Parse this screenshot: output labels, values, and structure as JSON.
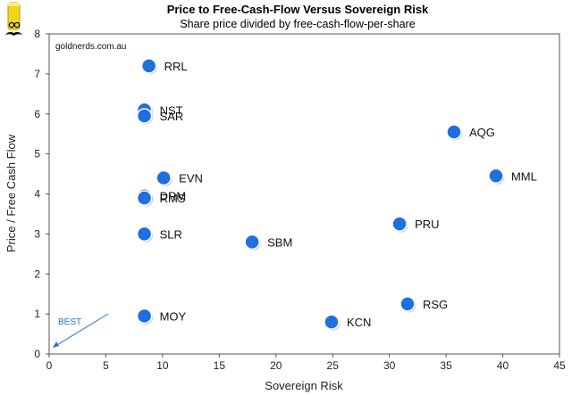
{
  "chart_data": {
    "type": "scatter",
    "title": "Price to Free-Cash-Flow Versus Sovereign Risk",
    "subtitle": "Share price divided by free-cash-flow-per-share",
    "xlabel": "Sovereign Risk",
    "ylabel": "Price / Free Cash Flow",
    "xlim": [
      0,
      45
    ],
    "ylim": [
      0,
      8
    ],
    "xticks": [
      0,
      5,
      10,
      15,
      20,
      25,
      30,
      35,
      40,
      45
    ],
    "yticks": [
      0,
      1,
      2,
      3,
      4,
      5,
      6,
      7,
      8
    ],
    "grid": false,
    "legend": "none",
    "marker_color": "#1f6fe0",
    "points": [
      {
        "label": "RRL",
        "x": 8.8,
        "y": 7.2
      },
      {
        "label": "NST",
        "x": 8.4,
        "y": 6.1
      },
      {
        "label": "SAR",
        "x": 8.4,
        "y": 5.95
      },
      {
        "label": "AQG",
        "x": 35.7,
        "y": 5.55
      },
      {
        "label": "MML",
        "x": 39.4,
        "y": 4.45
      },
      {
        "label": "EVN",
        "x": 10.1,
        "y": 4.4
      },
      {
        "label": "DRM",
        "x": 8.4,
        "y": 3.95
      },
      {
        "label": "RMS",
        "x": 8.4,
        "y": 3.9
      },
      {
        "label": "SLR",
        "x": 8.4,
        "y": 3.0
      },
      {
        "label": "SBM",
        "x": 17.9,
        "y": 2.8
      },
      {
        "label": "PRU",
        "x": 30.9,
        "y": 3.25
      },
      {
        "label": "RSG",
        "x": 31.6,
        "y": 1.25
      },
      {
        "label": "MOY",
        "x": 8.4,
        "y": 0.95
      },
      {
        "label": "KCN",
        "x": 24.9,
        "y": 0.8
      }
    ],
    "annotations": {
      "source": "goldnerds.com.au",
      "best": "BEST"
    }
  }
}
